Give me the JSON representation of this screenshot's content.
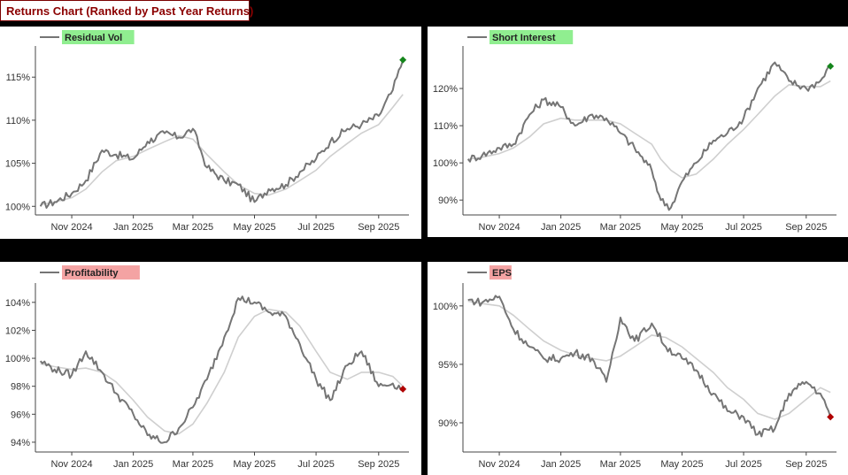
{
  "title": "Returns Chart (Ranked by Past Year Returns)",
  "colors": {
    "line": "#757575",
    "smooth": "#cfcfcf",
    "green": "#14851b",
    "red": "#b00000",
    "legend_green": "#90ee90",
    "legend_red": "#f4a3a3"
  },
  "chart_data": [
    {
      "type": "line",
      "series": [
        {
          "name": "Residual Vol"
        }
      ],
      "x_ticks": [
        "Nov 2024",
        "Jan 2025",
        "Mar 2025",
        "May 2025",
        "Jul 2025",
        "Sep 2025"
      ],
      "y_ticks": [
        "100%",
        "105%",
        "110%",
        "115%"
      ],
      "ylim": [
        99,
        118
      ],
      "legend_color": "legend_green",
      "marker_color": "green",
      "x": [
        "2024-10-01",
        "2024-10-15",
        "2024-11-01",
        "2024-11-15",
        "2024-12-01",
        "2024-12-15",
        "2025-01-01",
        "2025-01-15",
        "2025-02-01",
        "2025-02-15",
        "2025-03-01",
        "2025-03-15",
        "2025-04-01",
        "2025-04-15",
        "2025-05-01",
        "2025-05-15",
        "2025-06-01",
        "2025-06-15",
        "2025-07-01",
        "2025-07-15",
        "2025-08-01",
        "2025-08-15",
        "2025-09-01",
        "2025-09-15",
        "2025-09-25"
      ],
      "values": [
        100,
        100.5,
        101.5,
        103,
        106.5,
        106,
        105.5,
        107.5,
        108.5,
        108,
        109,
        104.5,
        103,
        102.5,
        100.5,
        102,
        102.5,
        104,
        105.5,
        107.5,
        109,
        109.5,
        110.5,
        113.5,
        117
      ],
      "smooth": [
        100.2,
        100.5,
        101,
        102,
        104,
        105.3,
        105.8,
        106.6,
        107.5,
        108.2,
        107.8,
        106,
        104,
        102.5,
        101.5,
        101.3,
        102,
        103,
        104.2,
        105.8,
        107.3,
        108.5,
        109.5,
        111.5,
        113
      ]
    },
    {
      "type": "line",
      "series": [
        {
          "name": "Short Interest"
        }
      ],
      "x_ticks": [
        "Nov 2024",
        "Jan 2025",
        "Mar 2025",
        "May 2025",
        "Jul 2025",
        "Sep 2025"
      ],
      "y_ticks": [
        "90%",
        "100%",
        "110%",
        "120%"
      ],
      "ylim": [
        86,
        130
      ],
      "legend_color": "legend_green",
      "marker_color": "green",
      "x": [
        "2024-10-01",
        "2024-10-15",
        "2024-11-01",
        "2024-11-15",
        "2024-12-01",
        "2024-12-15",
        "2025-01-01",
        "2025-01-15",
        "2025-02-01",
        "2025-02-15",
        "2025-03-01",
        "2025-03-15",
        "2025-04-01",
        "2025-04-10",
        "2025-04-20",
        "2025-05-01",
        "2025-05-15",
        "2025-06-01",
        "2025-06-15",
        "2025-07-01",
        "2025-07-15",
        "2025-08-01",
        "2025-08-15",
        "2025-09-01",
        "2025-09-15",
        "2025-09-25"
      ],
      "values": [
        101,
        102,
        104,
        105,
        113,
        117,
        115,
        110,
        113,
        112,
        108,
        104,
        98,
        90,
        88,
        95,
        100,
        106,
        108,
        112,
        120,
        127,
        122,
        120,
        122,
        126
      ],
      "smooth": [
        101,
        101.5,
        102.5,
        104,
        107,
        110.5,
        112,
        111.5,
        111.5,
        111.5,
        110.5,
        108,
        105,
        101,
        98,
        96,
        97,
        101,
        105,
        109,
        113,
        118,
        121,
        120.5,
        120.5,
        122
      ]
    },
    {
      "type": "line",
      "series": [
        {
          "name": "Profitability"
        }
      ],
      "x_ticks": [
        "Nov 2024",
        "Jan 2025",
        "Mar 2025",
        "May 2025",
        "Jul 2025",
        "Sep 2025"
      ],
      "y_ticks": [
        "94%",
        "96%",
        "98%",
        "100%",
        "102%",
        "104%"
      ],
      "ylim": [
        93.3,
        105
      ],
      "legend_color": "legend_red",
      "marker_color": "red",
      "x": [
        "2024-10-01",
        "2024-10-15",
        "2024-11-01",
        "2024-11-15",
        "2024-12-01",
        "2024-12-15",
        "2025-01-01",
        "2025-01-15",
        "2025-02-01",
        "2025-02-15",
        "2025-03-01",
        "2025-03-15",
        "2025-04-01",
        "2025-04-15",
        "2025-05-01",
        "2025-05-15",
        "2025-06-01",
        "2025-06-15",
        "2025-07-01",
        "2025-07-15",
        "2025-08-01",
        "2025-08-15",
        "2025-09-01",
        "2025-09-15",
        "2025-09-25"
      ],
      "values": [
        99.8,
        99.2,
        98.8,
        100.5,
        99,
        97.5,
        96,
        94.5,
        94,
        95,
        96.5,
        98.5,
        101.5,
        104.3,
        104,
        103.3,
        103,
        101,
        98.5,
        97,
        99.5,
        100.5,
        98,
        98.2,
        97.8
      ],
      "smooth": [
        99.6,
        99.4,
        99.2,
        99.3,
        99,
        98.3,
        97,
        95.8,
        94.8,
        94.6,
        95.3,
        96.8,
        99,
        101.5,
        103,
        103.5,
        103.3,
        102.3,
        100.5,
        99,
        98.5,
        99,
        99,
        98.7,
        98
      ]
    },
    {
      "type": "line",
      "series": [
        {
          "name": "EPS"
        }
      ],
      "x_ticks": [
        "Nov 2024",
        "Jan 2025",
        "Mar 2025",
        "May 2025",
        "Jul 2025",
        "Sep 2025"
      ],
      "y_ticks": [
        "90%",
        "95%",
        "100%"
      ],
      "ylim": [
        87.5,
        101.5
      ],
      "legend_color": "legend_red",
      "marker_color": "red",
      "x": [
        "2024-10-01",
        "2024-10-15",
        "2024-11-01",
        "2024-11-15",
        "2024-12-01",
        "2024-12-15",
        "2025-01-01",
        "2025-01-15",
        "2025-02-01",
        "2025-02-15",
        "2025-03-01",
        "2025-03-15",
        "2025-04-01",
        "2025-04-15",
        "2025-05-01",
        "2025-05-15",
        "2025-06-01",
        "2025-06-15",
        "2025-07-01",
        "2025-07-15",
        "2025-08-01",
        "2025-08-15",
        "2025-09-01",
        "2025-09-15",
        "2025-09-25"
      ],
      "values": [
        100.5,
        100.3,
        100.8,
        98,
        96.5,
        95.5,
        95.5,
        96,
        95.5,
        93.5,
        99,
        97,
        98.5,
        96.5,
        95.5,
        94.5,
        92.5,
        91,
        90.5,
        89,
        89.5,
        92.5,
        93.5,
        92.5,
        90.5
      ],
      "smooth": [
        100.4,
        100.2,
        100,
        99.2,
        98,
        97,
        96.2,
        95.8,
        95.5,
        95.3,
        95.7,
        96.5,
        97.5,
        97.3,
        96.5,
        95.5,
        94.3,
        93,
        92,
        90.8,
        90.3,
        90.8,
        92,
        93,
        92.6
      ]
    }
  ]
}
